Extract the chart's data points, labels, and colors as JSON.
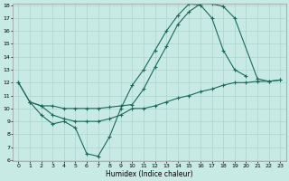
{
  "xlabel": "Humidex (Indice chaleur)",
  "ylim": [
    6,
    18
  ],
  "xlim": [
    -0.5,
    23.5
  ],
  "yticks": [
    6,
    7,
    8,
    9,
    10,
    11,
    12,
    13,
    14,
    15,
    16,
    17,
    18
  ],
  "xticks": [
    0,
    1,
    2,
    3,
    4,
    5,
    6,
    7,
    8,
    9,
    10,
    11,
    12,
    13,
    14,
    15,
    16,
    17,
    18,
    19,
    20,
    21,
    22,
    23
  ],
  "bg_color": "#c8eae4",
  "line_color": "#1a6b5a",
  "grid_color": "#aad4cc",
  "line1_x": [
    0,
    1,
    2,
    3,
    4,
    5,
    6,
    7,
    8,
    9,
    10,
    11,
    12,
    13,
    14,
    15,
    16,
    17,
    18,
    19,
    20
  ],
  "line1_y": [
    12,
    10.5,
    9.5,
    8.8,
    9.0,
    8.5,
    6.5,
    6.3,
    7.8,
    10.0,
    11.8,
    13.0,
    14.5,
    16.0,
    17.2,
    18.1,
    18.0,
    17.0,
    14.5,
    13.0,
    12.5
  ],
  "line2_x": [
    0,
    1,
    2,
    3,
    4,
    5,
    6,
    7,
    8,
    9,
    10,
    11,
    12,
    13,
    14,
    15,
    16,
    17,
    18,
    19,
    21,
    22,
    23
  ],
  "line2_y": [
    12,
    10.5,
    10.2,
    10.2,
    10.0,
    10.0,
    10.0,
    10.0,
    10.1,
    10.2,
    10.3,
    11.5,
    13.2,
    14.8,
    16.5,
    17.5,
    18.1,
    18.1,
    17.9,
    17.0,
    12.3,
    12.1,
    12.2
  ],
  "line3_x": [
    1,
    2,
    3,
    4,
    5,
    6,
    7,
    8,
    9,
    10,
    11,
    12,
    13,
    14,
    15,
    16,
    17,
    18,
    19,
    20,
    21,
    22,
    23
  ],
  "line3_y": [
    10.5,
    10.2,
    9.5,
    9.2,
    9.0,
    9.0,
    9.0,
    9.2,
    9.5,
    10.0,
    10.0,
    10.2,
    10.5,
    10.8,
    11.0,
    11.3,
    11.5,
    11.8,
    12.0,
    12.0,
    12.1,
    12.1,
    12.2
  ]
}
